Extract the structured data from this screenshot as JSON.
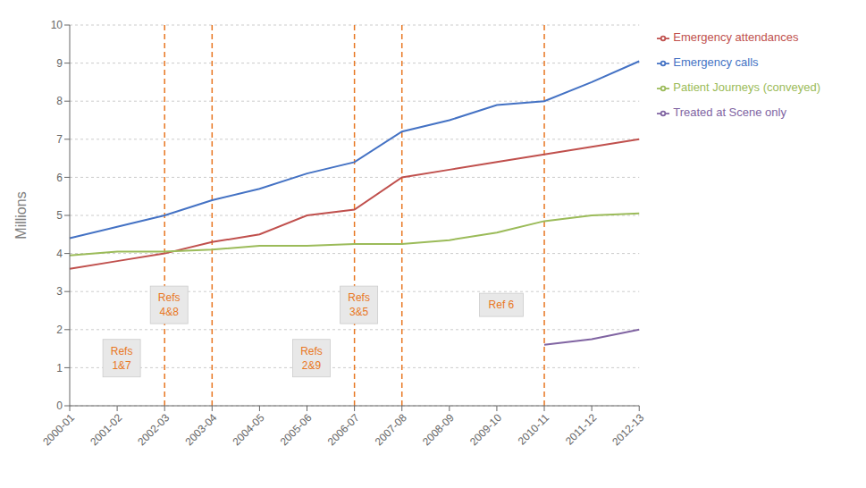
{
  "chart_data": {
    "type": "line",
    "categories": [
      "2000-01",
      "2001-02",
      "2002-03",
      "2003-04",
      "2004-05",
      "2005-06",
      "2006-07",
      "2007-08",
      "2008-09",
      "2009-10",
      "2010-11",
      "2011-12",
      "2012-13"
    ],
    "series": [
      {
        "name": "Emergency calls",
        "color": "#4472C4",
        "values": [
          4.4,
          4.7,
          5.0,
          5.4,
          5.7,
          6.1,
          6.4,
          7.2,
          7.5,
          7.9,
          8.0,
          8.5,
          9.05
        ]
      },
      {
        "name": "Emergency attendances",
        "color": "#C0504D",
        "values": [
          3.6,
          3.8,
          4.0,
          4.3,
          4.5,
          5.0,
          5.15,
          6.0,
          6.2,
          6.4,
          6.6,
          6.8,
          7.0
        ]
      },
      {
        "name": "Patient Journeys (conveyed)",
        "color": "#9BBB59",
        "values": [
          3.95,
          4.05,
          4.05,
          4.1,
          4.2,
          4.2,
          4.25,
          4.25,
          4.35,
          4.55,
          4.85,
          5.0,
          5.05
        ]
      },
      {
        "name": "Treated at Scene only",
        "color": "#8064A2",
        "values": [
          null,
          null,
          null,
          null,
          null,
          null,
          null,
          null,
          null,
          null,
          1.6,
          1.75,
          2.0
        ]
      }
    ],
    "ylabel": "Millions",
    "ylim": [
      0,
      10
    ],
    "yticks": [
      0,
      1,
      2,
      3,
      4,
      5,
      6,
      7,
      8,
      9,
      10
    ],
    "grid": true,
    "legend": "right",
    "annotations": [
      {
        "x": "2002-03",
        "y": 1.25,
        "text": "Refs\n1&7",
        "color": "#E87722"
      },
      {
        "x": "2003-04",
        "y": 2.65,
        "text": "Refs\n4&8",
        "color": "#E87722"
      },
      {
        "x": "2006-07",
        "y": 1.25,
        "text": "Refs\n2&9",
        "color": "#E87722"
      },
      {
        "x": "2007-08",
        "y": 2.65,
        "text": "Refs\n3&5",
        "color": "#E87722"
      },
      {
        "x": "2010-11",
        "y": 2.65,
        "text": "Ref 6",
        "color": "#E87722"
      }
    ]
  }
}
